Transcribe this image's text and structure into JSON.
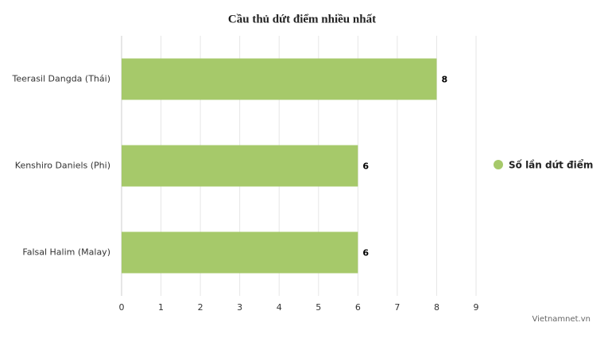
{
  "chart_data": {
    "type": "bar",
    "orientation": "horizontal",
    "title": "Cầu thủ dứt điểm nhiều nhất",
    "categories": [
      "Teerasil Dangda (Thái)",
      "Kenshiro Daniels (Phi)",
      "Falsal Halim (Malay)"
    ],
    "series": [
      {
        "name": "Số lần dứt điểm",
        "color": "#a6c96a",
        "values": [
          8,
          6,
          6
        ]
      }
    ],
    "xlim": [
      0,
      9
    ],
    "xticks": [
      0,
      1,
      2,
      3,
      4,
      5,
      6,
      7,
      8,
      9
    ],
    "grid": true,
    "legend": "right",
    "credit": "Vietnamnet.vn"
  }
}
